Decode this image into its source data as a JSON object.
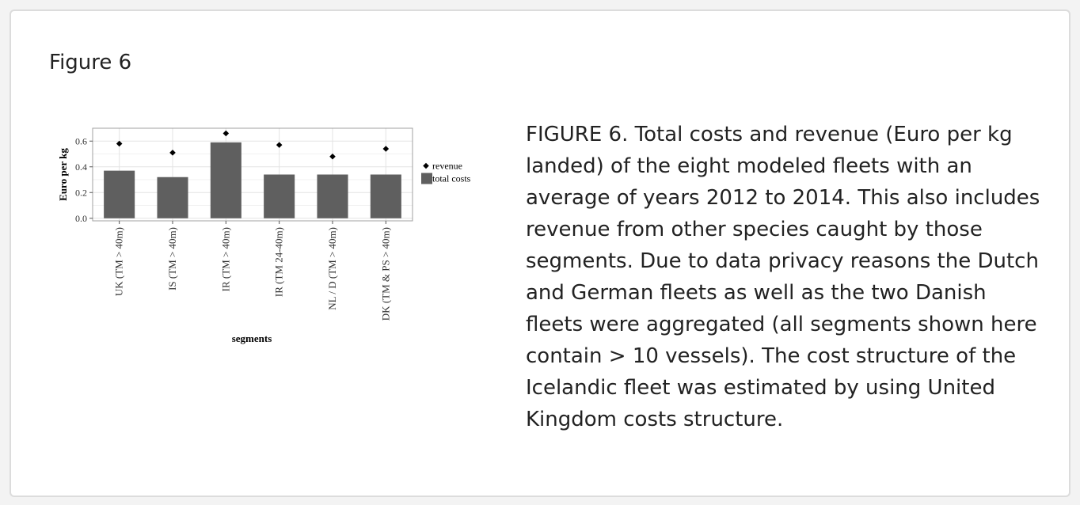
{
  "figure": {
    "title": "Figure 6",
    "caption": "FIGURE 6. Total costs and revenue (Euro per kg landed) of the eight modeled fleets with an average of years 2012 to 2014. This also includes revenue from other species caught by those segments. Due to data privacy reasons the Dutch and German fleets as well as the two Danish fleets were aggregated (all segments shown here contain > 10 vessels). The cost structure of the Icelandic fleet was estimated by using United Kingdom costs structure."
  },
  "chart_data": {
    "type": "bar",
    "categories": [
      "UK (TM > 40m)",
      "IS (TM > 40m)",
      "IR (TM > 40m)",
      "IR (TM 24-40m)",
      "NL / D (TM > 40m)",
      "DK (TM & PS > 40m)"
    ],
    "series": [
      {
        "name": "total costs",
        "type": "bar",
        "values": [
          0.37,
          0.32,
          0.59,
          0.34,
          0.34,
          0.34
        ]
      },
      {
        "name": "revenue",
        "type": "point",
        "values": [
          0.58,
          0.51,
          0.66,
          0.57,
          0.48,
          0.54
        ]
      }
    ],
    "xlabel": "segments",
    "ylabel": "Euro per kg",
    "yticks": [
      0.0,
      0.2,
      0.4,
      0.6
    ],
    "ytick_labels": [
      "0.0",
      "0.2",
      "0.4",
      "0.6"
    ],
    "ylim": [
      -0.02,
      0.7
    ],
    "grid": true,
    "legend_position": "right",
    "colors": {
      "bar": "#5f5f5f",
      "point": "#000000",
      "grid": "#e3e3e3"
    }
  }
}
